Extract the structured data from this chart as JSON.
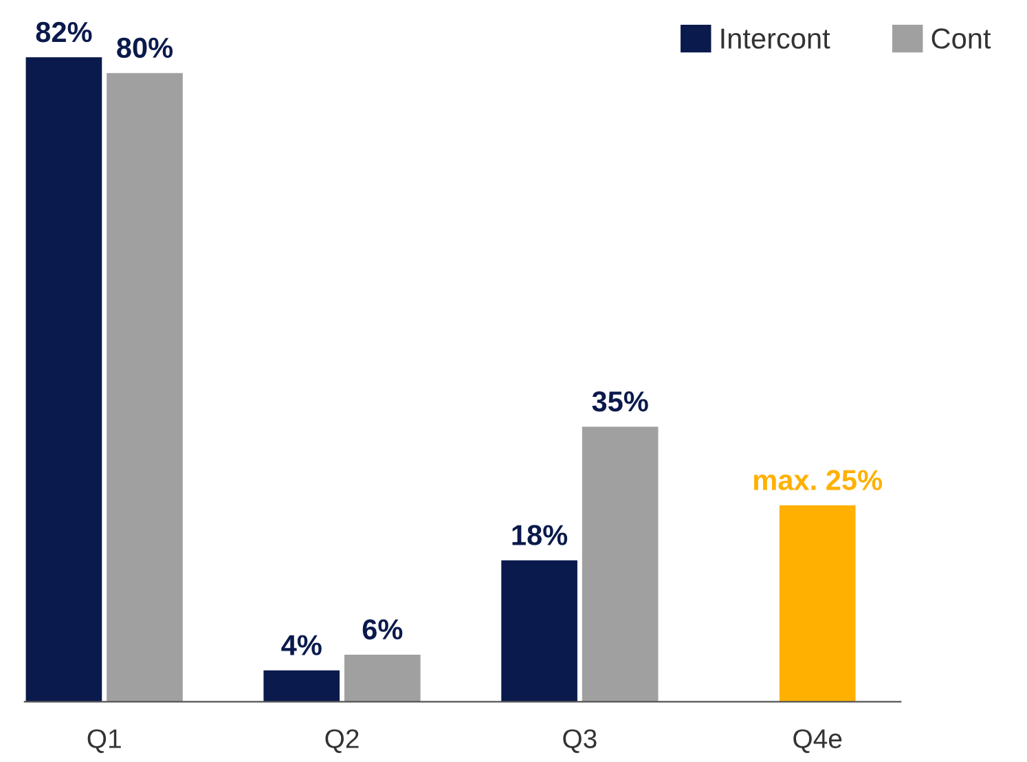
{
  "chart_data": {
    "type": "bar",
    "categories": [
      "Q1",
      "Q2",
      "Q3",
      "Q4e"
    ],
    "series": [
      {
        "name": "Intercont",
        "color": "#0b1a4c",
        "values": [
          82,
          4,
          18,
          null
        ],
        "value_labels": [
          "82%",
          "4%",
          "18%",
          null
        ]
      },
      {
        "name": "Cont",
        "color": "#a0a0a0",
        "values": [
          80,
          6,
          35,
          null
        ],
        "value_labels": [
          "80%",
          "6%",
          "35%",
          null
        ]
      },
      {
        "color": "#ffb000",
        "values": [
          null,
          null,
          null,
          25
        ],
        "value_labels": [
          null,
          null,
          null,
          "max. 25%"
        ]
      }
    ],
    "grid": false,
    "legend": "top right",
    "tick_labels": "x"
  }
}
